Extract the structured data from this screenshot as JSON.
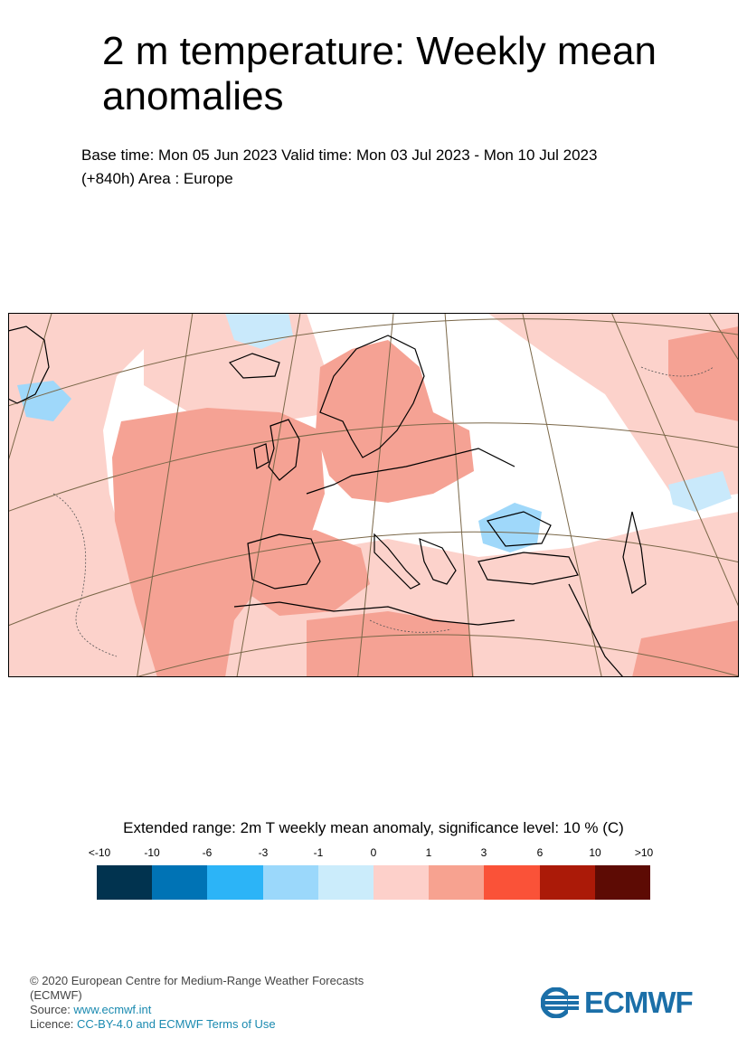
{
  "title": "2 m temperature: Weekly mean anomalies",
  "subtitle_line1": "Base time: Mon 05 Jun 2023 Valid time: Mon 03 Jul 2023 - Mon 10 Jul 2023",
  "subtitle_line2": "(+840h) Area : Europe",
  "map": {
    "area": "Europe",
    "projection": "conic",
    "colors": {
      "strong_warm": "#f5a294",
      "weak_warm": "#fcd2cb",
      "neutral": "#ffffff",
      "weak_cold": "#c9e9fb",
      "cold": "#9fd8fa",
      "coast": "#000000",
      "graticule": "#7a6748"
    }
  },
  "legend": {
    "title": "Extended range: 2m T weekly mean anomaly, significance level: 10 % (C)",
    "tick_labels": [
      "<-10",
      "-10",
      "-6",
      "-3",
      "-1",
      "0",
      "1",
      "3",
      "6",
      "10",
      ">10"
    ],
    "colors": [
      "#01334f",
      "#0073b5",
      "#2cb4f7",
      "#9bd8fb",
      "#cbecfb",
      "#fdd0ca",
      "#f7a290",
      "#fa5238",
      "#ab1a08",
      "#5d0b04"
    ]
  },
  "footer": {
    "copyright": "© 2020 European Centre for Medium-Range Weather Forecasts",
    "org": "(ECMWF)",
    "source_label": "Source: ",
    "source_link": "www.ecmwf.int",
    "licence_label": "Licence: ",
    "licence_link": "CC-BY-4.0 and ECMWF Terms of Use"
  },
  "logo": {
    "text": "ECMWF",
    "icon": "ecmwf-logo-icon",
    "color": "#1b6fa8"
  }
}
